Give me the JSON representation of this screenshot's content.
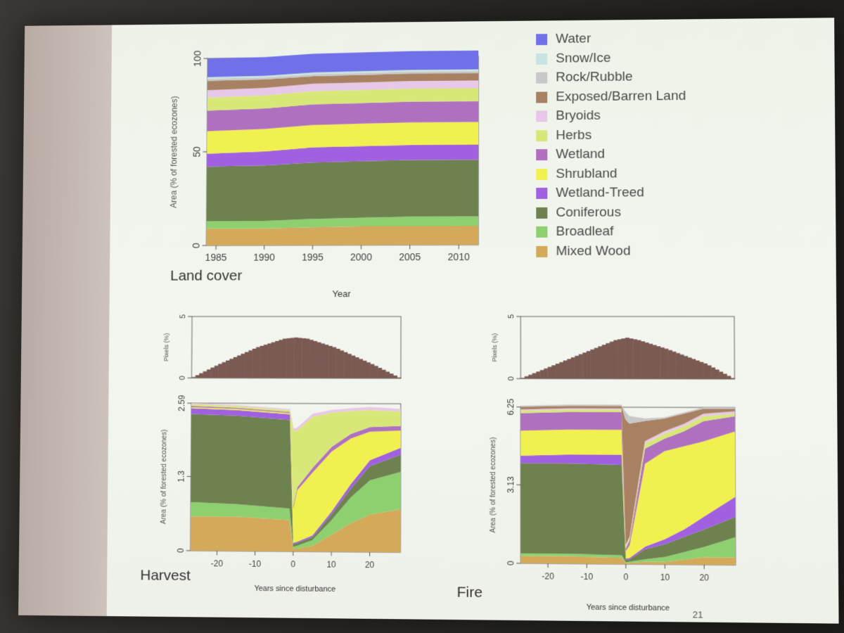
{
  "slide": {
    "page_number": "21"
  },
  "legend": [
    {
      "label": "Water",
      "color": "#7070e8"
    },
    {
      "label": "Snow/Ice",
      "color": "#c8e4e0"
    },
    {
      "label": "Rock/Rubble",
      "color": "#c8c8c8"
    },
    {
      "label": "Exposed/Barren Land",
      "color": "#a88062"
    },
    {
      "label": "Bryoids",
      "color": "#e8c8e8"
    },
    {
      "label": "Herbs",
      "color": "#d8e878"
    },
    {
      "label": "Wetland",
      "color": "#b070c0"
    },
    {
      "label": "Shrubland",
      "color": "#f0f050"
    },
    {
      "label": "Wetland-Treed",
      "color": "#a060e0"
    },
    {
      "label": "Coniferous",
      "color": "#6e8250"
    },
    {
      "label": "Broadleaf",
      "color": "#8ed070"
    },
    {
      "label": "Mixed Wood",
      "color": "#d4aa5a"
    }
  ],
  "chart_data": [
    {
      "type": "area",
      "title": "",
      "panel_label": "Land cover",
      "xlabel": "Year",
      "ylabel": "Area (% of forested ecozones)",
      "xlim": [
        1984,
        2012
      ],
      "ylim": [
        0,
        100
      ],
      "xticks": [
        "1985",
        "1990",
        "1995",
        "2000",
        "2005",
        "2010"
      ],
      "yticks": [
        "0",
        "50",
        "100"
      ],
      "x": [
        1984,
        1990,
        1995,
        2000,
        2005,
        2012
      ],
      "series": [
        {
          "name": "Mixed Wood",
          "values": [
            9,
            9,
            9.5,
            10,
            10,
            10
          ]
        },
        {
          "name": "Broadleaf",
          "values": [
            4,
            4,
            4.5,
            4.5,
            5,
            5
          ]
        },
        {
          "name": "Coniferous",
          "values": [
            29,
            29.5,
            30,
            30,
            30,
            30
          ]
        },
        {
          "name": "Wetland-Treed",
          "values": [
            7,
            7.5,
            8,
            8,
            8,
            8
          ]
        },
        {
          "name": "Shrubland",
          "values": [
            12,
            12,
            12,
            12,
            12,
            12
          ]
        },
        {
          "name": "Wetland",
          "values": [
            11,
            11,
            11,
            11,
            11,
            11
          ]
        },
        {
          "name": "Herbs",
          "values": [
            7,
            7,
            7,
            7,
            7,
            7
          ]
        },
        {
          "name": "Bryoids",
          "values": [
            4,
            4,
            4,
            4,
            4,
            4
          ]
        },
        {
          "name": "Exposed/Barren Land",
          "values": [
            5,
            4.5,
            4,
            4,
            4,
            4
          ]
        },
        {
          "name": "Rock/Rubble",
          "values": [
            1,
            1,
            1,
            1,
            1,
            1
          ]
        },
        {
          "name": "Snow/Ice",
          "values": [
            1,
            1,
            1,
            1,
            1,
            1
          ]
        },
        {
          "name": "Water",
          "values": [
            10,
            10,
            10,
            10,
            10,
            10
          ]
        }
      ]
    },
    {
      "type": "bar",
      "title": "",
      "ylabel": "Pixels (%)",
      "ylim": [
        0,
        5
      ],
      "yticks": [
        "0",
        "5"
      ],
      "x": [
        -27,
        -20,
        -10,
        -3,
        0,
        3,
        10,
        20,
        27
      ],
      "values": [
        0,
        1.1,
        2.5,
        3.2,
        3.3,
        3.2,
        2.5,
        1.1,
        0
      ]
    },
    {
      "type": "area",
      "title": "",
      "panel_label": "Harvest",
      "xlabel": "Years since disturbance",
      "ylabel": "Area (% of forested ecozones)",
      "xlim": [
        -27,
        28
      ],
      "ylim": [
        0,
        2.59
      ],
      "xticks": [
        "-20",
        "-10",
        "0",
        "10",
        "20"
      ],
      "yticks": [
        "0",
        "1.3",
        "2.59"
      ],
      "x": [
        -27,
        -15,
        -1,
        0,
        1,
        5,
        10,
        15,
        20,
        28
      ],
      "series": [
        {
          "name": "Mixed Wood",
          "values": [
            0.6,
            0.6,
            0.55,
            0.05,
            0.05,
            0.1,
            0.3,
            0.5,
            0.65,
            0.75
          ]
        },
        {
          "name": "Broadleaf",
          "values": [
            0.25,
            0.22,
            0.2,
            0.03,
            0.05,
            0.1,
            0.25,
            0.45,
            0.6,
            0.65
          ]
        },
        {
          "name": "Coniferous",
          "values": [
            1.55,
            1.55,
            1.55,
            0.05,
            0.05,
            0.05,
            0.1,
            0.15,
            0.25,
            0.3
          ]
        },
        {
          "name": "Wetland-Treed",
          "values": [
            0.1,
            0.1,
            0.1,
            0.02,
            0.02,
            0.03,
            0.05,
            0.08,
            0.1,
            0.12
          ]
        },
        {
          "name": "Shrubland",
          "values": [
            0.02,
            0.02,
            0.02,
            0.6,
            0.9,
            1.1,
            1.05,
            0.8,
            0.5,
            0.3
          ]
        },
        {
          "name": "Wetland",
          "values": [
            0.02,
            0.02,
            0.02,
            0.05,
            0.05,
            0.08,
            0.08,
            0.08,
            0.08,
            0.08
          ]
        },
        {
          "name": "Herbs",
          "values": [
            0.03,
            0.03,
            0.03,
            1.3,
            1.0,
            0.9,
            0.6,
            0.4,
            0.3,
            0.25
          ]
        },
        {
          "name": "Bryoids",
          "values": [
            0.02,
            0.02,
            0.02,
            0.05,
            0.05,
            0.05,
            0.05,
            0.05,
            0.05,
            0.05
          ]
        }
      ]
    },
    {
      "type": "bar",
      "title": "",
      "ylabel": "Pixels (%)",
      "ylim": [
        0,
        5
      ],
      "yticks": [
        "0",
        "5"
      ],
      "x": [
        -27,
        -20,
        -10,
        -3,
        0,
        3,
        10,
        20,
        27
      ],
      "values": [
        0,
        0.9,
        2.2,
        3.1,
        3.3,
        3.1,
        2.4,
        1.2,
        0
      ]
    },
    {
      "type": "area",
      "title": "",
      "panel_label": "Fire",
      "xlabel": "Years since disturbance",
      "ylabel": "Area (% of forested ecozones)",
      "xlim": [
        -27,
        28
      ],
      "ylim": [
        0,
        6.25
      ],
      "xticks": [
        "-20",
        "-10",
        "0",
        "10",
        "20"
      ],
      "yticks": [
        "0",
        "3.13",
        "6.25"
      ],
      "x": [
        -27,
        -15,
        -1,
        0,
        1,
        5,
        10,
        15,
        20,
        28
      ],
      "series": [
        {
          "name": "Mixed Wood",
          "values": [
            0.3,
            0.3,
            0.25,
            0.05,
            0.05,
            0.1,
            0.1,
            0.2,
            0.3,
            0.3
          ]
        },
        {
          "name": "Broadleaf",
          "values": [
            0.1,
            0.1,
            0.1,
            0.02,
            0.05,
            0.1,
            0.2,
            0.3,
            0.4,
            0.8
          ]
        },
        {
          "name": "Coniferous",
          "values": [
            3.6,
            3.6,
            3.6,
            0.1,
            0.1,
            0.4,
            0.5,
            0.6,
            0.7,
            0.8
          ]
        },
        {
          "name": "Wetland-Treed",
          "values": [
            0.3,
            0.35,
            0.4,
            0.05,
            0.05,
            0.1,
            0.2,
            0.3,
            0.5,
            0.8
          ]
        },
        {
          "name": "Shrubland",
          "values": [
            1.0,
            1.0,
            1.0,
            0.3,
            0.5,
            3.3,
            3.5,
            3.3,
            3.0,
            2.6
          ]
        },
        {
          "name": "Wetland",
          "values": [
            0.7,
            0.7,
            0.7,
            0.1,
            0.2,
            0.6,
            0.5,
            0.6,
            0.8,
            0.6
          ]
        },
        {
          "name": "Herbs",
          "values": [
            0.1,
            0.1,
            0.1,
            0.1,
            0.1,
            0.2,
            0.2,
            0.2,
            0.2,
            0.1
          ]
        },
        {
          "name": "Bryoids",
          "values": [
            0.05,
            0.05,
            0.05,
            0.05,
            0.05,
            0.1,
            0.1,
            0.1,
            0.1,
            0.1
          ]
        },
        {
          "name": "Exposed/Barren Land",
          "values": [
            0.1,
            0.1,
            0.1,
            5.0,
            4.5,
            0.8,
            0.5,
            0.4,
            0.2,
            0.1
          ]
        },
        {
          "name": "Rock/Rubble",
          "values": [
            0.05,
            0.05,
            0.05,
            0.3,
            0.3,
            0.1,
            0.05,
            0.05,
            0.05,
            0.05
          ]
        }
      ]
    }
  ]
}
